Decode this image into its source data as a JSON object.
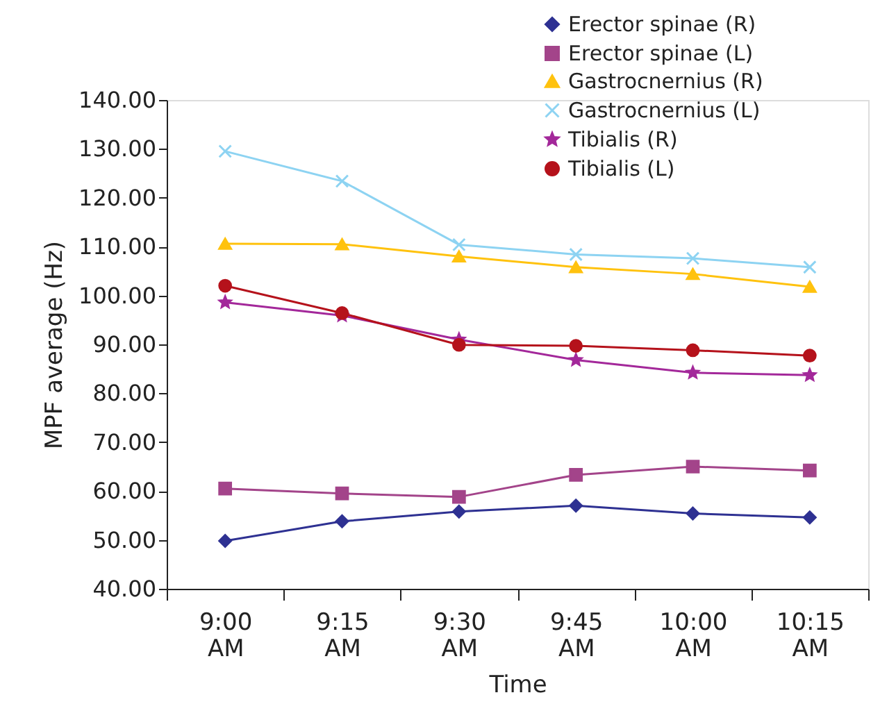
{
  "chart_data": {
    "type": "line",
    "xlabel": "Time",
    "ylabel": "MPF average (Hz)",
    "categories": [
      "9:00 AM",
      "9:15 AM",
      "9:30 AM",
      "9:45 AM",
      "10:00 AM",
      "10:15 AM"
    ],
    "series": [
      {
        "name": "Erector spinae (R)",
        "color": "#2e3192",
        "marker": "diamond",
        "values": [
          49.8,
          53.8,
          55.8,
          57.0,
          55.4,
          54.6
        ]
      },
      {
        "name": "Erector spinae (L)",
        "color": "#a3448a",
        "marker": "square",
        "values": [
          60.5,
          59.5,
          58.8,
          63.3,
          65.0,
          64.2
        ]
      },
      {
        "name": "Gastrocnernius (R)",
        "color": "#ffc20e",
        "marker": "triangle",
        "values": [
          110.6,
          110.5,
          108.0,
          105.8,
          104.4,
          101.8
        ]
      },
      {
        "name": "Gastrocnernius (L)",
        "color": "#8dd3f2",
        "marker": "cross",
        "values": [
          129.5,
          123.4,
          110.4,
          108.4,
          107.6,
          105.8
        ]
      },
      {
        "name": "Tibialis (R)",
        "color": "#a3289a",
        "marker": "star",
        "values": [
          98.6,
          95.9,
          91.0,
          86.8,
          84.2,
          83.7
        ]
      },
      {
        "name": "Tibialis (L)",
        "color": "#b5121b",
        "marker": "circle",
        "values": [
          102.0,
          96.4,
          89.9,
          89.7,
          88.8,
          87.7
        ]
      }
    ],
    "ylim": [
      40,
      140
    ],
    "yticks": [
      {
        "value": 40,
        "label": "40.00"
      },
      {
        "value": 50,
        "label": "50.00"
      },
      {
        "value": 60,
        "label": "60.00"
      },
      {
        "value": 70,
        "label": "70.00"
      },
      {
        "value": 80,
        "label": "80.00"
      },
      {
        "value": 90,
        "label": "90.00"
      },
      {
        "value": 100,
        "label": "100.00"
      },
      {
        "value": 110,
        "label": "110.00"
      },
      {
        "value": 120,
        "label": "120.00"
      },
      {
        "value": 130,
        "label": "130.00"
      },
      {
        "value": 140,
        "label": "140.00"
      }
    ],
    "grid": false,
    "legend": "top right",
    "line_style": "solid"
  }
}
